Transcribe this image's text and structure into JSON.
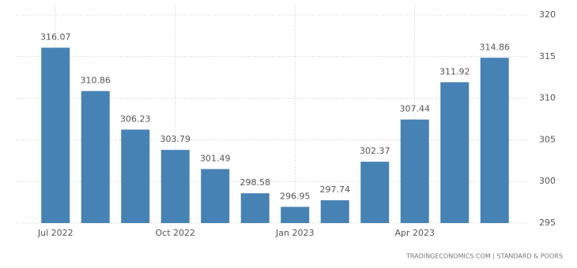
{
  "chart_data": {
    "type": "bar",
    "categories": [
      "Jul 2022",
      null,
      null,
      "Oct 2022",
      null,
      null,
      "Jan 2023",
      null,
      null,
      "Apr 2023",
      null,
      null
    ],
    "values": [
      316.07,
      310.86,
      306.23,
      303.79,
      301.49,
      298.58,
      296.95,
      297.74,
      302.37,
      307.44,
      311.92,
      314.86
    ],
    "color": "#4682b4",
    "ylim": [
      295,
      320
    ],
    "yticks": [
      295,
      300,
      305,
      310,
      315,
      320
    ],
    "grid": true,
    "source": "TRADINGECONOMICS.COM | STANDARD & POORS"
  }
}
